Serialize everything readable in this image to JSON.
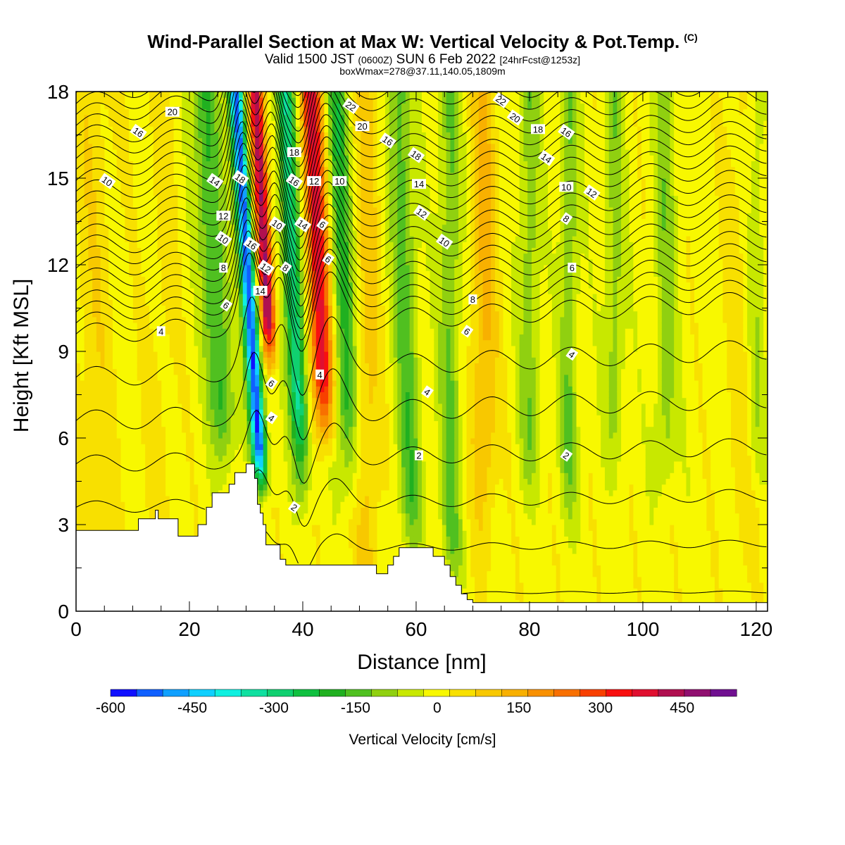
{
  "header": {
    "title": "Wind-Parallel Section at Max W: Vertical Velocity & Pot.Temp.",
    "title_mark": "(C)",
    "subtitle_valid": "Valid 1500 JST",
    "subtitle_utc": "(0600Z)",
    "subtitle_date": "SUN 6 Feb 2022",
    "subtitle_fcst": "[24hrFcst@1253z]",
    "box_info": "boxWmax=278@37.11,140.05,1809m"
  },
  "chart_data": {
    "type": "heatmap",
    "title": "Wind-Parallel Section at Max W: Vertical Velocity & Pot.Temp.",
    "xlabel": "Distance [nm]",
    "ylabel": "Height [Kft MSL]",
    "xlim": [
      0,
      122
    ],
    "ylim": [
      0,
      18
    ],
    "x_ticks": [
      "0",
      "20",
      "40",
      "60",
      "80",
      "100",
      "120"
    ],
    "x_tick_values": [
      0,
      20,
      40,
      60,
      80,
      100,
      120
    ],
    "y_ticks": [
      "0",
      "3",
      "6",
      "9",
      "12",
      "15",
      "18"
    ],
    "y_tick_values": [
      0,
      3,
      6,
      9,
      12,
      15,
      18
    ],
    "colorbar": {
      "label": "Vertical Velocity [cm/s]",
      "range": [
        -600,
        550
      ],
      "tick_labels": [
        "-600",
        "-450",
        "-300",
        "-150",
        "0",
        "150",
        "300",
        "450"
      ],
      "tick_values": [
        -600,
        -450,
        -300,
        -150,
        0,
        150,
        300,
        450
      ],
      "colors": [
        "#1010ff",
        "#1060ff",
        "#10a0ff",
        "#10d0ff",
        "#10f0e0",
        "#10e0a0",
        "#10d070",
        "#10c040",
        "#20b020",
        "#50c020",
        "#90d010",
        "#c8e800",
        "#f8f800",
        "#f8e000",
        "#f8c800",
        "#f8b000",
        "#f89000",
        "#f87000",
        "#f84000",
        "#f81010",
        "#e01030",
        "#b01050",
        "#901070",
        "#701090"
      ]
    },
    "terrain": {
      "x": [
        0,
        10,
        11,
        14,
        14.5,
        18,
        21,
        21.5,
        23,
        24,
        25,
        27,
        28,
        30,
        31,
        31.5,
        32,
        32.5,
        33,
        33.5,
        34,
        36,
        37,
        52,
        53,
        55,
        56,
        57,
        62,
        63,
        65,
        66,
        67,
        68,
        69,
        70,
        122
      ],
      "y": [
        2.8,
        2.8,
        3.2,
        3.5,
        3.2,
        2.6,
        2.6,
        3.0,
        3.6,
        4.1,
        4.1,
        4.4,
        4.8,
        5.1,
        5.1,
        4.6,
        3.7,
        3.4,
        3.0,
        2.3,
        2.3,
        1.8,
        1.6,
        1.6,
        1.3,
        1.6,
        1.9,
        2.2,
        2.2,
        1.9,
        1.6,
        1.2,
        0.9,
        0.6,
        0.4,
        0.3,
        0.3
      ]
    },
    "contour_labels": [
      {
        "text": "20",
        "x": 17,
        "y": 17.3
      },
      {
        "text": "16",
        "x": 11,
        "y": 16.6
      },
      {
        "text": "10",
        "x": 5.5,
        "y": 14.9
      },
      {
        "text": "4",
        "x": 15,
        "y": 9.7
      },
      {
        "text": "14",
        "x": 24.5,
        "y": 14.9
      },
      {
        "text": "18",
        "x": 29,
        "y": 15.0
      },
      {
        "text": "12",
        "x": 26,
        "y": 13.7
      },
      {
        "text": "10",
        "x": 26,
        "y": 12.9
      },
      {
        "text": "16",
        "x": 31,
        "y": 12.7
      },
      {
        "text": "8",
        "x": 26,
        "y": 11.9
      },
      {
        "text": "6",
        "x": 26.5,
        "y": 10.6
      },
      {
        "text": "12",
        "x": 33.5,
        "y": 11.9
      },
      {
        "text": "14",
        "x": 32.5,
        "y": 11.1
      },
      {
        "text": "10",
        "x": 35.5,
        "y": 13.4
      },
      {
        "text": "8",
        "x": 37,
        "y": 11.9
      },
      {
        "text": "18",
        "x": 38.5,
        "y": 15.9
      },
      {
        "text": "16",
        "x": 38.5,
        "y": 14.9
      },
      {
        "text": "14",
        "x": 40,
        "y": 13.4
      },
      {
        "text": "12",
        "x": 42,
        "y": 14.9
      },
      {
        "text": "6",
        "x": 43.5,
        "y": 13.4
      },
      {
        "text": "6",
        "x": 44.5,
        "y": 12.2
      },
      {
        "text": "10",
        "x": 46.5,
        "y": 14.9
      },
      {
        "text": "6",
        "x": 34.5,
        "y": 7.9
      },
      {
        "text": "4",
        "x": 34.5,
        "y": 6.7
      },
      {
        "text": "4",
        "x": 43,
        "y": 8.2
      },
      {
        "text": "2",
        "x": 38.5,
        "y": 3.6
      },
      {
        "text": "22",
        "x": 48.5,
        "y": 17.5
      },
      {
        "text": "20",
        "x": 50.5,
        "y": 16.8
      },
      {
        "text": "16",
        "x": 55,
        "y": 16.3
      },
      {
        "text": "18",
        "x": 60,
        "y": 15.8
      },
      {
        "text": "14",
        "x": 60.5,
        "y": 14.8
      },
      {
        "text": "12",
        "x": 61,
        "y": 13.8
      },
      {
        "text": "10",
        "x": 65,
        "y": 12.8
      },
      {
        "text": "8",
        "x": 70,
        "y": 10.8
      },
      {
        "text": "6",
        "x": 69,
        "y": 9.7
      },
      {
        "text": "4",
        "x": 62,
        "y": 7.6
      },
      {
        "text": "2",
        "x": 60.5,
        "y": 5.4
      },
      {
        "text": "22",
        "x": 75,
        "y": 17.7
      },
      {
        "text": "20",
        "x": 77.5,
        "y": 17.1
      },
      {
        "text": "18",
        "x": 81.5,
        "y": 16.7
      },
      {
        "text": "16",
        "x": 86.5,
        "y": 16.6
      },
      {
        "text": "14",
        "x": 83,
        "y": 15.7
      },
      {
        "text": "10",
        "x": 86.5,
        "y": 14.7
      },
      {
        "text": "12",
        "x": 91,
        "y": 14.5
      },
      {
        "text": "8",
        "x": 86.5,
        "y": 13.6
      },
      {
        "text": "6",
        "x": 87.5,
        "y": 11.9
      },
      {
        "text": "4",
        "x": 87.5,
        "y": 8.9
      },
      {
        "text": "2",
        "x": 86.5,
        "y": 5.4
      }
    ]
  }
}
